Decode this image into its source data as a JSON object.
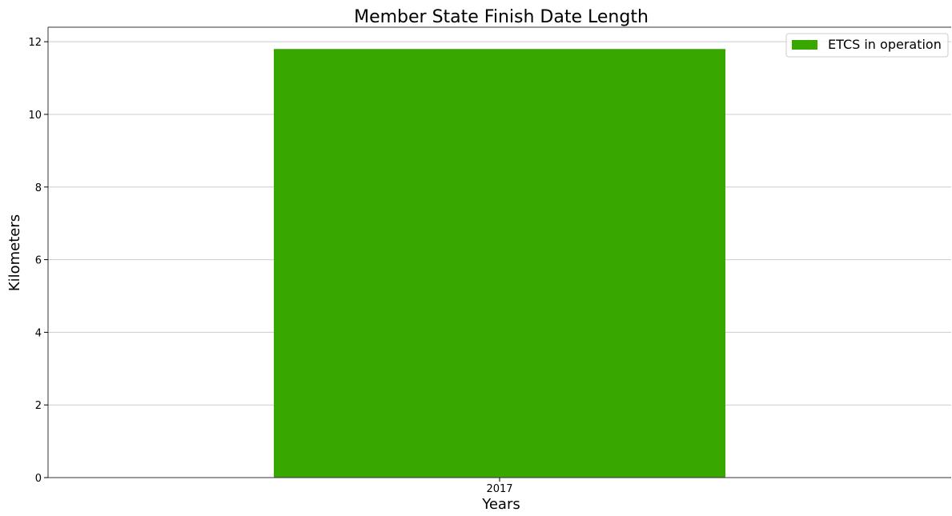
{
  "chart_data": {
    "type": "bar",
    "title": "Member State Finish Date Length",
    "xlabel": "Years",
    "ylabel": "Kilometers",
    "categories": [
      "2017"
    ],
    "series": [
      {
        "name": "ETCS in operation",
        "values": [
          11.8
        ],
        "color": "#38a800"
      }
    ],
    "ylim": [
      0,
      12.4
    ],
    "yticks": [
      0,
      2,
      4,
      6,
      8,
      10,
      12
    ],
    "grid": "horizontal",
    "legend": "top-right"
  }
}
